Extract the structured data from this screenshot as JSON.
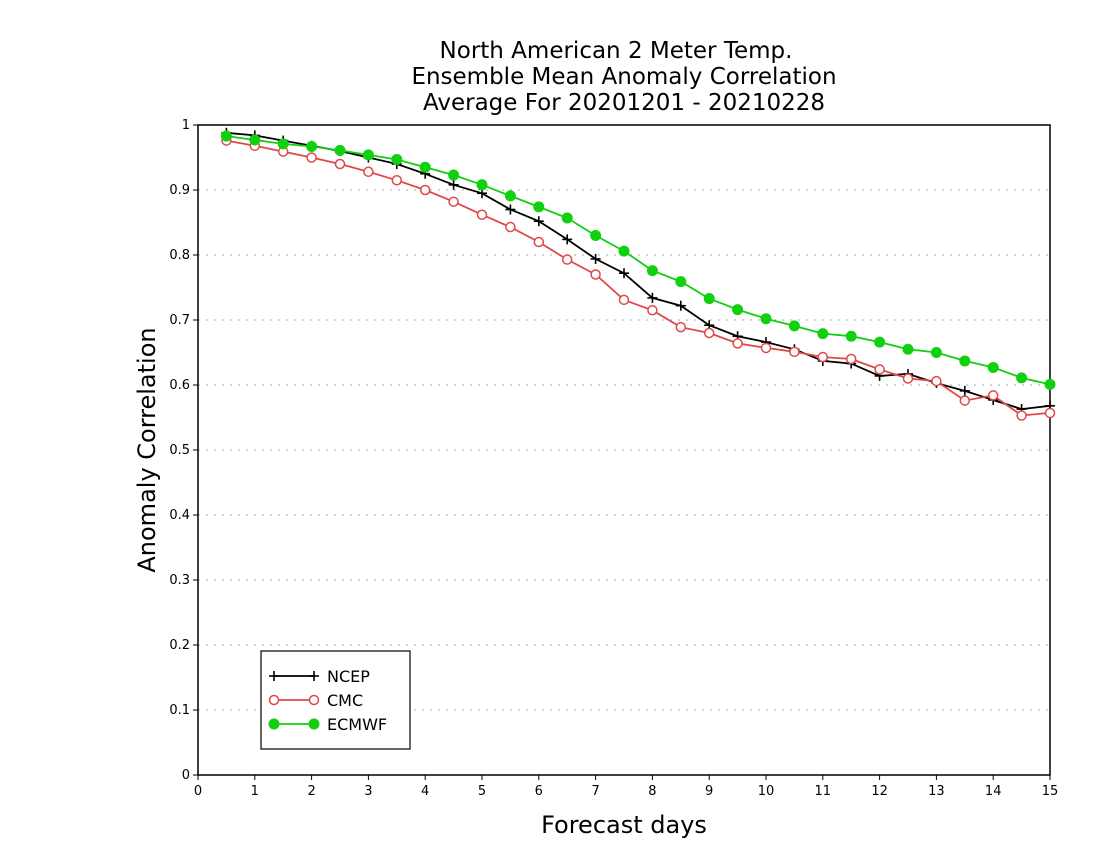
{
  "chart_data": {
    "type": "line",
    "title": [
      "North American 2 Meter Temp.",
      "Ensemble Mean Anomaly Correlation",
      "Average For 20201201 - 20210228"
    ],
    "xlabel": "Forecast days",
    "ylabel": "Anomaly Correlation",
    "xlim": [
      0,
      15
    ],
    "ylim": [
      0,
      1
    ],
    "x_ticks": [
      "0",
      "1",
      "2",
      "3",
      "4",
      "5",
      "6",
      "7",
      "8",
      "9",
      "10",
      "11",
      "12",
      "13",
      "14",
      "15"
    ],
    "y_ticks": [
      "0",
      "0.1",
      "0.2",
      "0.3",
      "0.4",
      "0.5",
      "0.6",
      "0.7",
      "0.8",
      "0.9",
      "1"
    ],
    "grid": "horizontal dotted",
    "legend_position": "bottom-left",
    "x": [
      0.5,
      1,
      1.5,
      2,
      2.5,
      3,
      3.5,
      4,
      4.5,
      5,
      5.5,
      6,
      6.5,
      7,
      7.5,
      8,
      8.5,
      9,
      9.5,
      10,
      10.5,
      11,
      11.5,
      12,
      12.5,
      13,
      13.5,
      14,
      14.5,
      15
    ],
    "series": [
      {
        "name": "NCEP",
        "color": "#000000",
        "marker": "plus",
        "values": [
          0.988,
          0.984,
          0.976,
          0.968,
          0.96,
          0.95,
          0.94,
          0.925,
          0.908,
          0.895,
          0.87,
          0.852,
          0.824,
          0.794,
          0.772,
          0.734,
          0.722,
          0.692,
          0.675,
          0.666,
          0.655,
          0.637,
          0.633,
          0.614,
          0.617,
          0.603,
          0.591,
          0.577,
          0.563,
          0.568
        ]
      },
      {
        "name": "CMC",
        "color": "#e04848",
        "marker": "open-circle",
        "values": [
          0.976,
          0.968,
          0.959,
          0.95,
          0.94,
          0.928,
          0.915,
          0.9,
          0.882,
          0.862,
          0.843,
          0.82,
          0.793,
          0.77,
          0.731,
          0.715,
          0.689,
          0.68,
          0.664,
          0.657,
          0.651,
          0.643,
          0.64,
          0.624,
          0.61,
          0.606,
          0.576,
          0.584,
          0.553,
          0.557
        ]
      },
      {
        "name": "ECMWF",
        "color": "#10d010",
        "marker": "filled-circle",
        "values": [
          0.983,
          0.977,
          0.971,
          0.967,
          0.961,
          0.954,
          0.947,
          0.935,
          0.923,
          0.908,
          0.891,
          0.874,
          0.857,
          0.83,
          0.806,
          0.776,
          0.759,
          0.733,
          0.716,
          0.702,
          0.691,
          0.679,
          0.675,
          0.666,
          0.655,
          0.65,
          0.637,
          0.627,
          0.611,
          0.601
        ]
      }
    ]
  }
}
